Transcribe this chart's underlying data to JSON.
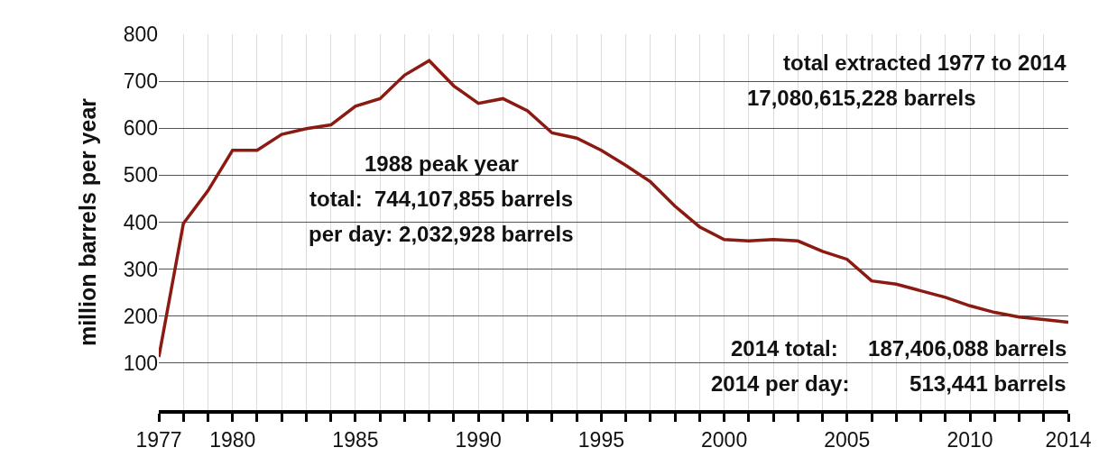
{
  "chart_data": {
    "type": "line",
    "ylabel": "million barrels per year",
    "x": [
      1977,
      1978,
      1979,
      1980,
      1981,
      1982,
      1983,
      1984,
      1985,
      1986,
      1987,
      1988,
      1989,
      1990,
      1991,
      1992,
      1993,
      1994,
      1995,
      1996,
      1997,
      1998,
      1999,
      2000,
      2001,
      2002,
      2003,
      2004,
      2005,
      2006,
      2007,
      2008,
      2009,
      2010,
      2011,
      2012,
      2013,
      2014
    ],
    "series": [
      {
        "color": "#8b1a13",
        "values": [
          113,
          397,
          467,
          553,
          553,
          587,
          599,
          607,
          647,
          663,
          713,
          744,
          690,
          653,
          663,
          637,
          590,
          579,
          553,
          521,
          486,
          434,
          390,
          363,
          360,
          363,
          360,
          338,
          321,
          275,
          268,
          254,
          240,
          222,
          208,
          198,
          193,
          187
        ]
      }
    ],
    "xlim": [
      1977,
      2014
    ],
    "xticks": [
      1977,
      {
        "value": 1978,
        "label": null
      },
      {
        "value": 1979,
        "label": null
      },
      1980,
      {
        "value": 1981,
        "label": null
      },
      {
        "value": 1982,
        "label": null
      },
      {
        "value": 1983,
        "label": null
      },
      {
        "value": 1984,
        "label": null
      },
      1985,
      {
        "value": 1986,
        "label": null
      },
      {
        "value": 1987,
        "label": null
      },
      {
        "value": 1988,
        "label": null
      },
      {
        "value": 1989,
        "label": null
      },
      1990,
      {
        "value": 1991,
        "label": null
      },
      {
        "value": 1992,
        "label": null
      },
      {
        "value": 1993,
        "label": null
      },
      {
        "value": 1994,
        "label": null
      },
      1995,
      {
        "value": 1996,
        "label": null
      },
      {
        "value": 1997,
        "label": null
      },
      {
        "value": 1998,
        "label": null
      },
      {
        "value": 1999,
        "label": null
      },
      2000,
      {
        "value": 2001,
        "label": null
      },
      {
        "value": 2002,
        "label": null
      },
      {
        "value": 2003,
        "label": null
      },
      {
        "value": 2004,
        "label": null
      },
      2005,
      {
        "value": 2006,
        "label": null
      },
      {
        "value": 2007,
        "label": null
      },
      {
        "value": 2008,
        "label": null
      },
      {
        "value": 2009,
        "label": null
      },
      2010,
      {
        "value": 2011,
        "label": null
      },
      {
        "value": 2012,
        "label": null
      },
      {
        "value": 2013,
        "label": null
      },
      2014
    ],
    "ylim": [
      0,
      800
    ],
    "yticks": [
      100,
      200,
      300,
      400,
      500,
      600,
      700,
      800
    ],
    "grid": true,
    "marker": "none",
    "line_style": "solid",
    "annotations": [
      "1988 peak year",
      "total:  744,107,855 barrels",
      "per day: 2,032,928 barrels",
      "total extracted 1977 to 2014",
      "17,080,615,228 barrels",
      "2014 total:     187,406,088 barrels",
      "2014 per day:          513,441 barrels"
    ]
  }
}
